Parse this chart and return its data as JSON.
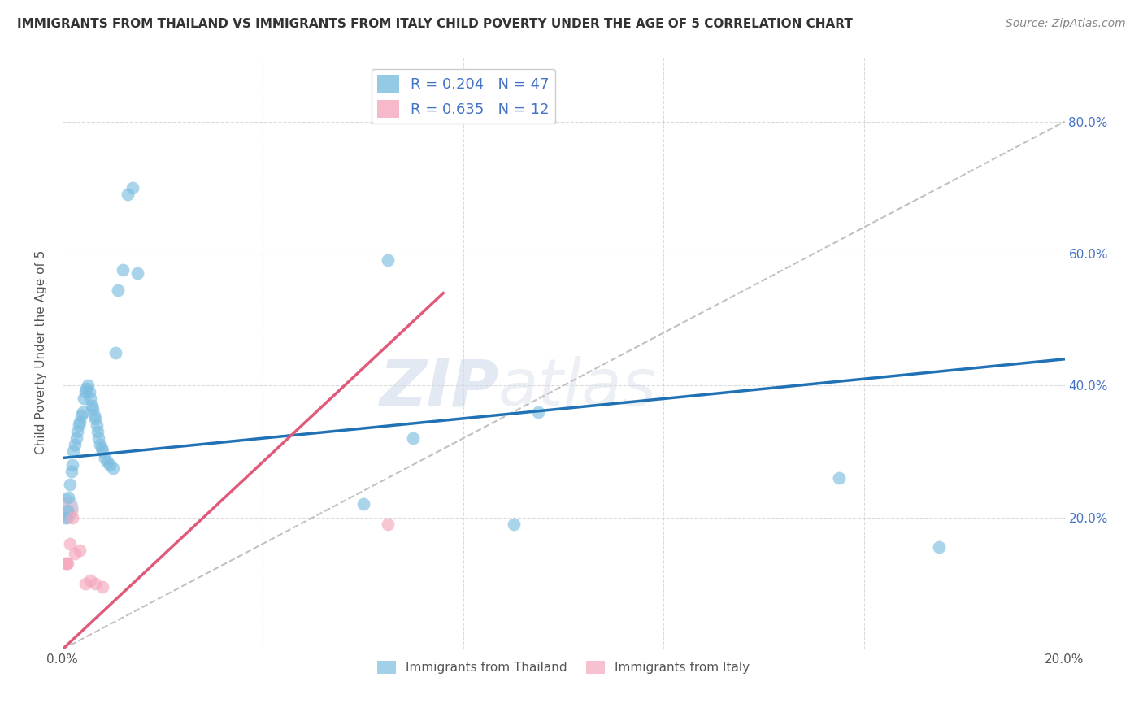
{
  "title": "IMMIGRANTS FROM THAILAND VS IMMIGRANTS FROM ITALY CHILD POVERTY UNDER THE AGE OF 5 CORRELATION CHART",
  "source": "Source: ZipAtlas.com",
  "ylabel": "Child Poverty Under the Age of 5",
  "xlim": [
    0.0,
    0.2
  ],
  "ylim": [
    0.0,
    0.9
  ],
  "x_ticks": [
    0.0,
    0.04,
    0.08,
    0.12,
    0.16,
    0.2
  ],
  "y_ticks": [
    0.0,
    0.2,
    0.4,
    0.6,
    0.8
  ],
  "x_tick_labels": [
    "0.0%",
    "",
    "",
    "",
    "",
    "20.0%"
  ],
  "y_tick_labels_right": [
    "",
    "20.0%",
    "40.0%",
    "60.0%",
    "80.0%"
  ],
  "thailand_color": "#7bbde0",
  "italy_color": "#f5a8bc",
  "thailand_R": 0.204,
  "thailand_N": 47,
  "italy_R": 0.635,
  "italy_N": 12,
  "thailand_line_color": "#2171b5",
  "italy_line_color": "#e05a7a",
  "diagonal_color": "#bbbbbb",
  "watermark_zip": "ZIP",
  "watermark_atlas": "atlas",
  "thailand_line_x0": 0.0,
  "thailand_line_y0": 0.29,
  "thailand_line_x1": 0.2,
  "thailand_line_y1": 0.44,
  "italy_line_x0": 0.0,
  "italy_line_y0": 0.0,
  "italy_line_x1": 0.076,
  "italy_line_y1": 0.54,
  "thailand_x": [
    0.0008,
    0.001,
    0.0012,
    0.0015,
    0.0018,
    0.002,
    0.0022,
    0.0025,
    0.0028,
    0.003,
    0.0032,
    0.0035,
    0.0038,
    0.004,
    0.0042,
    0.0045,
    0.0048,
    0.005,
    0.0053,
    0.0056,
    0.0058,
    0.006,
    0.0063,
    0.0065,
    0.0068,
    0.007,
    0.0072,
    0.0075,
    0.0078,
    0.008,
    0.0085,
    0.009,
    0.0095,
    0.01,
    0.0105,
    0.011,
    0.012,
    0.013,
    0.014,
    0.015,
    0.06,
    0.065,
    0.07,
    0.09,
    0.095,
    0.155,
    0.175
  ],
  "thailand_y": [
    0.2,
    0.21,
    0.23,
    0.25,
    0.27,
    0.28,
    0.3,
    0.31,
    0.32,
    0.33,
    0.34,
    0.345,
    0.355,
    0.36,
    0.38,
    0.39,
    0.395,
    0.4,
    0.39,
    0.38,
    0.37,
    0.365,
    0.355,
    0.35,
    0.34,
    0.33,
    0.32,
    0.31,
    0.305,
    0.3,
    0.29,
    0.285,
    0.28,
    0.275,
    0.45,
    0.545,
    0.575,
    0.69,
    0.7,
    0.57,
    0.22,
    0.59,
    0.32,
    0.19,
    0.36,
    0.26,
    0.155
  ],
  "italy_x": [
    0.0005,
    0.0008,
    0.001,
    0.0015,
    0.002,
    0.0025,
    0.0035,
    0.0045,
    0.0055,
    0.0065,
    0.008,
    0.065
  ],
  "italy_y": [
    0.13,
    0.13,
    0.13,
    0.16,
    0.2,
    0.145,
    0.15,
    0.1,
    0.105,
    0.1,
    0.095,
    0.19
  ]
}
